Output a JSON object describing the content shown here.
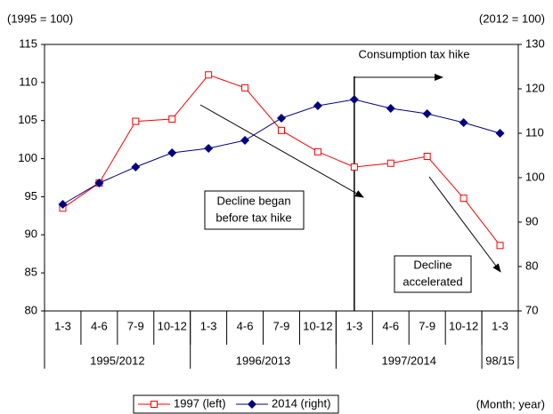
{
  "chart_data": {
    "type": "line",
    "y_label": "(1995 = 100)",
    "y2_label": "(2012 = 100)",
    "x_label": "(Month; year)",
    "categories": [
      "1-3",
      "4-6",
      "7-9",
      "10-12",
      "1-3",
      "4-6",
      "7-9",
      "10-12",
      "1-3",
      "4-6",
      "7-9",
      "10-12",
      "1-3"
    ],
    "groups": [
      "1995/2012",
      "1996/2013",
      "1997/2014",
      "98/15"
    ],
    "series": [
      {
        "name": "1997 (left)",
        "color": "#ff0000",
        "values": [
          93.5,
          96.8,
          104.9,
          105.2,
          111.0,
          109.3,
          103.7,
          100.9,
          98.9,
          99.4,
          100.3,
          94.8,
          88.6
        ]
      },
      {
        "name": "2014 (right)",
        "color": "#000080",
        "axis": "y2",
        "values": [
          94.0,
          98.8,
          102.4,
          105.6,
          106.6,
          108.4,
          113.4,
          116.2,
          117.6,
          115.6,
          114.4,
          112.4,
          110.0
        ]
      }
    ],
    "ylim": [
      80,
      115
    ],
    "yticks": [
      80,
      85,
      90,
      95,
      100,
      105,
      110,
      115
    ],
    "y2lim": [
      70,
      130
    ],
    "y2ticks": [
      70,
      80,
      90,
      100,
      110,
      120,
      130
    ],
    "annotations": [
      [
        "Consumption tax hike"
      ],
      [
        "Decline began",
        "before tax hike"
      ],
      [
        "Decline",
        "accelerated"
      ]
    ]
  }
}
